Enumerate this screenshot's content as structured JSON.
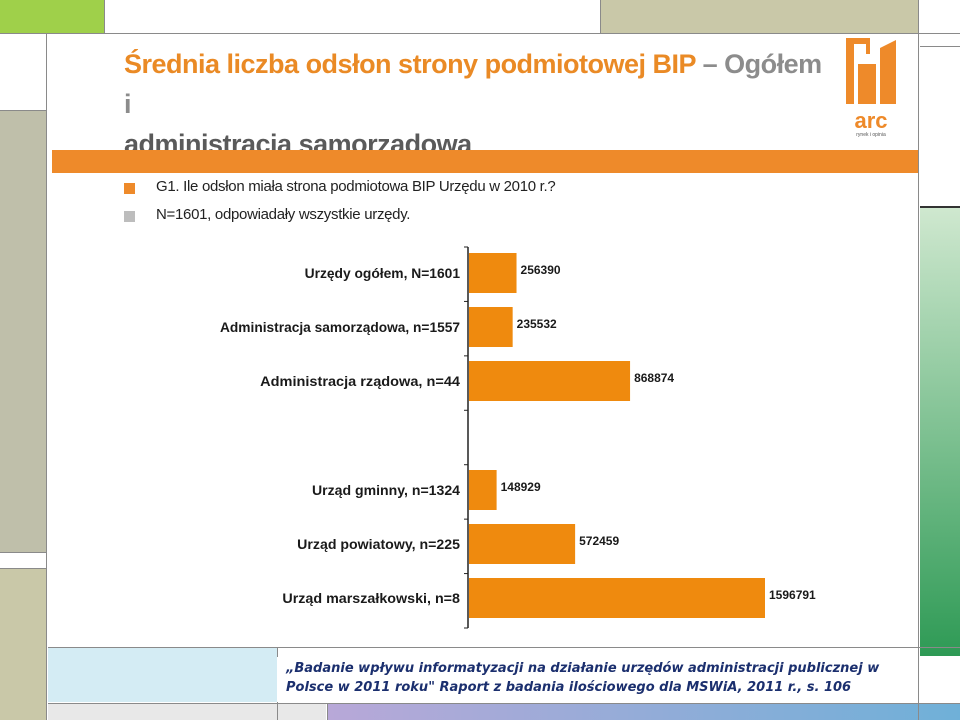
{
  "slide": {
    "title_part1": "Średnia liczba odsłon strony podmiotowej BIP",
    "title_part2": " – Ogółem i",
    "title_line2": "administracja samorządowa",
    "question": "G1. Ile odsłon miała strona podmiotowa BIP Urzędu w 2010 r.?",
    "sample_note": "N=1601, odpowiadały wszystkie urzędy.",
    "caption_line1": "„Badanie wpływu informatyzacji na działanie urzędów administracji publicznej w",
    "caption_line2": "Polsce w 2011 roku\"  Raport z badania ilościowego dla MSWiA, 2011 r., s. 106",
    "logo_text": "arc",
    "logo_subtext": "rynek i opinia"
  },
  "colors": {
    "accent_orange": "#ee8a2a",
    "bar_orange": "#ef8a0e",
    "title_gray": "#8c8c8c",
    "legend_gray": "#bdbdbd",
    "caption_blue": "#1b2f6e"
  },
  "chart_data": {
    "type": "bar",
    "orientation": "horizontal",
    "categories": [
      "Urzędy ogółem, N=1601",
      "Administracja samorządowa, n=1557",
      "Administracja rządowa, n=44",
      "",
      "Urząd gminny, n=1324",
      "Urząd powiatowy, n=225",
      "Urząd marszałkowski, n=8"
    ],
    "values": [
      256390,
      235532,
      868874,
      null,
      148929,
      572459,
      1596791
    ],
    "value_labels": [
      "256390",
      "235532",
      "868874",
      "",
      "148929",
      "572459",
      "1596791"
    ],
    "xlim": [
      0,
      1650000
    ],
    "grid": false,
    "legend": "none"
  }
}
